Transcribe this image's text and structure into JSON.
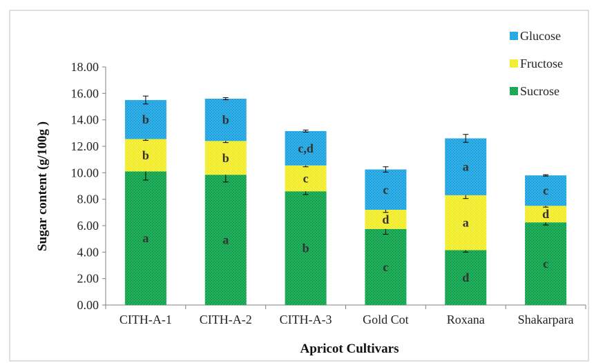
{
  "chart_data": {
    "type": "bar",
    "stacked": true,
    "title": "",
    "xlabel": "Apricot Cultivars",
    "ylabel": "Sugar content (g/100g )",
    "ylim": [
      0,
      18
    ],
    "yticks": [
      "0.00",
      "2.00",
      "4.00",
      "6.00",
      "8.00",
      "10.00",
      "12.00",
      "14.00",
      "16.00",
      "18.00"
    ],
    "categories": [
      "CITH-A-1",
      "CITH-A-2",
      "CITH-A-3",
      "Gold Cot",
      "Roxana",
      "Shakarpara"
    ],
    "series": [
      {
        "name": "Sucrose",
        "color": "#1fae5a",
        "values": [
          10.1,
          9.85,
          8.6,
          5.75,
          4.15,
          6.25
        ],
        "errors": [
          0.65,
          0.55,
          0.25,
          0.4,
          0.15,
          0.2
        ],
        "labels": [
          "a",
          "a",
          "b",
          "c",
          "d",
          "c"
        ]
      },
      {
        "name": "Fructose",
        "color": "#f5f03c",
        "values": [
          2.45,
          2.55,
          1.95,
          1.45,
          4.15,
          1.25
        ],
        "errors": [
          0.1,
          0.12,
          0.1,
          0.2,
          0.25,
          0.1
        ],
        "labels": [
          "b",
          "b",
          "c",
          "d",
          "a",
          "d"
        ]
      },
      {
        "name": "Glucose",
        "color": "#2eaee6",
        "values": [
          2.95,
          3.2,
          2.6,
          3.05,
          4.3,
          2.3
        ],
        "errors": [
          0.3,
          0.08,
          0.08,
          0.2,
          0.3,
          0.05
        ],
        "labels": [
          "b",
          "b",
          "c,d",
          "c",
          "a",
          "c"
        ]
      }
    ],
    "legend_order": [
      "Glucose",
      "Fructose",
      "Sucrose"
    ],
    "legend_position": "top-right",
    "grid": false
  }
}
